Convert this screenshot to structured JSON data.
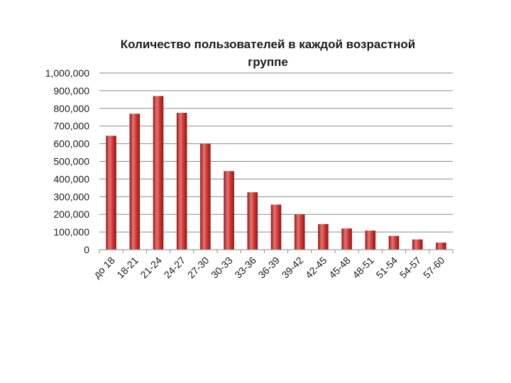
{
  "chart_data": {
    "type": "bar",
    "title": "Количество пользователей в каждой возрастной группе",
    "xlabel": "",
    "ylabel": "",
    "categories": [
      "до 18",
      "18-21",
      "21-24",
      "24-27",
      "27-30",
      "30-33",
      "33-36",
      "36-39",
      "39-42",
      "42-45",
      "45-48",
      "48-51",
      "51-54",
      "54-57",
      "57-60"
    ],
    "values": [
      645000,
      770000,
      870000,
      775000,
      600000,
      445000,
      325000,
      255000,
      200000,
      145000,
      120000,
      108000,
      78000,
      58000,
      40000
    ],
    "ylim": [
      0,
      1000000
    ],
    "y_ticks": [
      "0",
      "100,000",
      "200,000",
      "300,000",
      "400,000",
      "500,000",
      "600,000",
      "700,000",
      "800,000",
      "900,000",
      "1,000,000"
    ],
    "grid": true,
    "legend": "none",
    "colors": {
      "bar_dark": "#8e1a1a",
      "bar_mid": "#c8302d",
      "bar_light": "#e8736f",
      "grid": "#8a8a8a",
      "text": "#1a1a1a"
    }
  }
}
